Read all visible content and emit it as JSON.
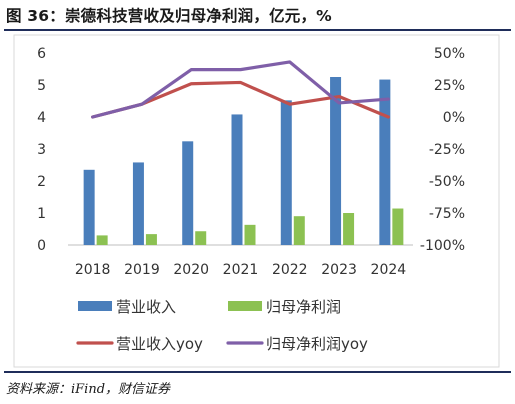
{
  "title": "图 36：崇德科技营收及归母净利润，亿元，%",
  "source": "资料来源：iFind，财信证券",
  "chart_data": {
    "type": "bar",
    "categories": [
      "2018",
      "2019",
      "2020",
      "2021",
      "2022",
      "2023",
      "2024"
    ],
    "series": [
      {
        "name": "营业收入",
        "kind": "bar",
        "axis": "left",
        "color": "#4a7ebb",
        "values": [
          2.35,
          2.58,
          3.24,
          4.08,
          4.52,
          5.25,
          5.17
        ]
      },
      {
        "name": "归母净利润",
        "kind": "bar",
        "axis": "left",
        "color": "#8cc152",
        "values": [
          0.3,
          0.34,
          0.43,
          0.63,
          0.9,
          1.0,
          1.14
        ]
      },
      {
        "name": "营业收入yoy",
        "kind": "line",
        "axis": "right",
        "color": "#c0504d",
        "values": [
          0.0,
          0.1,
          0.26,
          0.27,
          0.1,
          0.16,
          0.0
        ]
      },
      {
        "name": "归母净利润yoy",
        "kind": "line",
        "axis": "right",
        "color": "#7f5fa8",
        "values": [
          0.0,
          0.1,
          0.37,
          0.37,
          0.43,
          0.11,
          0.14
        ]
      }
    ],
    "y_left": {
      "min": 0,
      "max": 6,
      "ticks": [
        "0",
        "1",
        "2",
        "3",
        "4",
        "5",
        "6"
      ],
      "tick_values": [
        0,
        1,
        2,
        3,
        4,
        5,
        6
      ]
    },
    "y_right": {
      "min": -1.0,
      "max": 0.5,
      "ticks": [
        "-100%",
        "-75%",
        "-50%",
        "-25%",
        "0%",
        "25%",
        "50%"
      ],
      "tick_values": [
        -1.0,
        -0.75,
        -0.5,
        -0.25,
        0.0,
        0.25,
        0.5
      ]
    },
    "grid": false,
    "legend_position": "bottom"
  }
}
